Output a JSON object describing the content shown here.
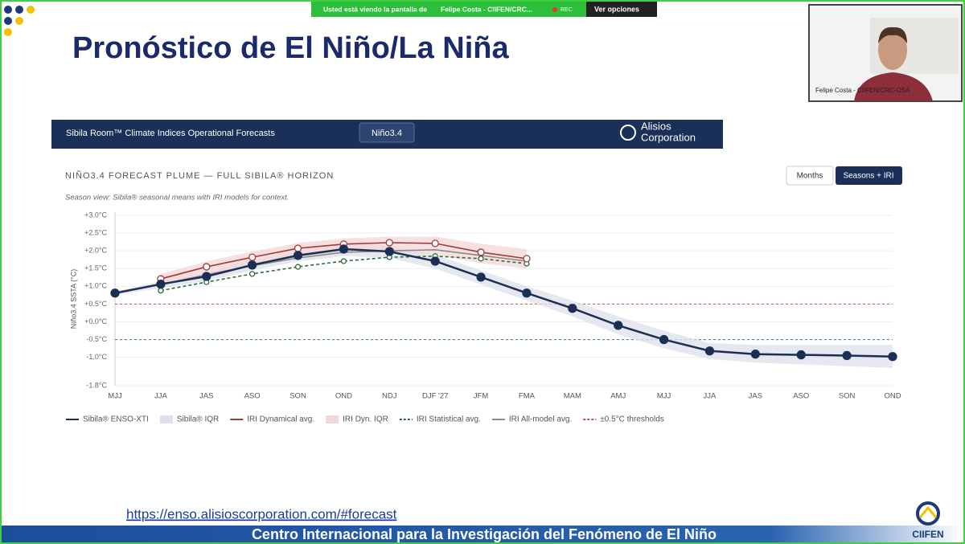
{
  "screen_share": {
    "banner": "Usted está viendo la pantalla de",
    "presenter": "Felipe Costa - CIIFEN/CRC...",
    "rec": "REC",
    "options": "Ver opciones",
    "webcam_label": "Felipe Costa - CIIFEN/CRC-OSA"
  },
  "slide": {
    "title": "Pronóstico de El Niño/La Niña",
    "url": "https://enso.alisioscorporation.com/#forecast",
    "footer": "Centro Internacional para la Investigación del Fenómeno de El Niño",
    "logo": "CIIFEN"
  },
  "app": {
    "header": "Sibila Room™ Climate Indices Operational Forecasts",
    "index_button": "Niño3.4",
    "brand_line1": "Alisios",
    "brand_line2": "Corporation",
    "toggle": [
      "Months",
      "Seasons + IRI"
    ]
  },
  "chart_data": {
    "type": "line",
    "title": "NIÑO3.4 FORECAST PLUME — FULL SIBILA® HORIZON",
    "subtitle": "Season view: Sibila® seasonal means with IRI models for context.",
    "y_label": "Niño3.4 SSTA (°C)",
    "categories": [
      "MJJ",
      "JJA",
      "JAS",
      "ASO",
      "SON",
      "OND",
      "NDJ",
      "DJF '27",
      "JFM",
      "FMA",
      "MAM",
      "AMJ",
      "MJJ",
      "JJA",
      "JAS",
      "ASO",
      "SON",
      "OND"
    ],
    "ylim": [
      -1.8,
      3.0
    ],
    "yticks": [
      {
        "value": 3.0,
        "label": "+3.0°C"
      },
      {
        "value": 2.5,
        "label": "+2.5°C"
      },
      {
        "value": 2.0,
        "label": "+2.0°C"
      },
      {
        "value": 1.5,
        "label": "+1.5°C"
      },
      {
        "value": 1.0,
        "label": "+1.0°C"
      },
      {
        "value": 0.5,
        "label": "+0.5°C"
      },
      {
        "value": 0.0,
        "label": "+0.0°C"
      },
      {
        "value": -0.5,
        "label": "-0.5°C"
      },
      {
        "value": -1.0,
        "label": "-1.0°C"
      },
      {
        "value": -1.8,
        "label": "-1.8°C"
      }
    ],
    "grid": true,
    "bands": [
      {
        "name": "Sibila® IQR",
        "color": "#dde0ea",
        "low": [
          0.75,
          0.95,
          1.15,
          1.45,
          1.7,
          1.85,
          1.8,
          1.5,
          1.05,
          0.6,
          0.15,
          -0.35,
          -0.75,
          -1.05,
          -1.15,
          -1.2,
          -1.25,
          -1.3
        ],
        "high": [
          0.85,
          1.15,
          1.4,
          1.75,
          2.0,
          2.2,
          2.15,
          1.9,
          1.45,
          1.0,
          0.6,
          0.15,
          -0.25,
          -0.6,
          -0.65,
          -0.65,
          -0.65,
          -0.65
        ]
      },
      {
        "name": "IRI Dyn. IQR",
        "color": "#f3d6d6",
        "low": [
          null,
          1.05,
          1.35,
          1.6,
          1.85,
          1.95,
          1.95,
          1.9,
          1.65,
          1.5,
          null,
          null,
          null,
          null,
          null,
          null,
          null,
          null
        ],
        "high": [
          null,
          1.35,
          1.7,
          1.98,
          2.22,
          2.35,
          2.4,
          2.4,
          2.2,
          2.05,
          null,
          null,
          null,
          null,
          null,
          null,
          null,
          null
        ]
      }
    ],
    "series": [
      {
        "name": "Sibila® ENSO-XTI",
        "color": "#1b2f55",
        "marker": "filled",
        "dash": false,
        "values": [
          0.81,
          1.06,
          1.28,
          1.6,
          1.87,
          2.05,
          1.98,
          1.71,
          1.26,
          0.81,
          0.38,
          -0.1,
          -0.5,
          -0.82,
          -0.91,
          -0.93,
          -0.95,
          -0.98
        ]
      },
      {
        "name": "IRI Dynamical avg.",
        "color": "#a33a3a",
        "marker": "open",
        "dash": false,
        "values": [
          null,
          1.21,
          1.55,
          1.82,
          2.07,
          2.19,
          2.23,
          2.21,
          1.96,
          1.78,
          null,
          null,
          null,
          null,
          null,
          null,
          null,
          null
        ]
      },
      {
        "name": "IRI Statistical avg.",
        "color": "#2f6b3a",
        "marker": "open",
        "dash": true,
        "values": [
          null,
          0.88,
          1.12,
          1.35,
          1.55,
          1.71,
          1.82,
          1.85,
          1.78,
          1.64,
          null,
          null,
          null,
          null,
          null,
          null,
          null,
          null
        ]
      },
      {
        "name": "IRI All-model avg.",
        "color": "#8a8a8a",
        "marker": "none",
        "dash": false,
        "values": [
          null,
          1.05,
          1.33,
          1.58,
          1.8,
          1.96,
          2.0,
          2.03,
          1.87,
          1.71,
          null,
          null,
          null,
          null,
          null,
          null,
          null,
          null
        ]
      }
    ],
    "thresholds": [
      {
        "value": 0.5,
        "color": "#c0504d"
      },
      {
        "value": -0.5,
        "color": "#3b7ea1"
      }
    ],
    "threshold_label": "±0.5°C thresholds"
  }
}
